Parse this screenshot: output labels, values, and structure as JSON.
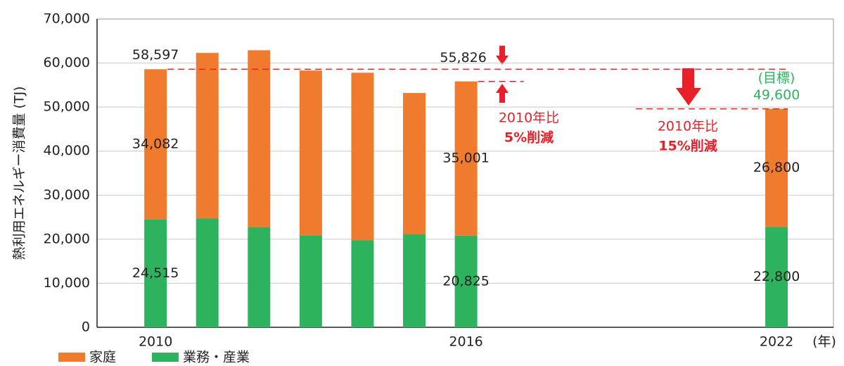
{
  "chart_data": {
    "type": "stacked_bar",
    "y_label": "熱利用エネルギー消費量 (TJ)",
    "x_unit_label": "(年)",
    "x": [
      2010,
      2011,
      2012,
      2013,
      2014,
      2015,
      2016,
      2022
    ],
    "xlim": [
      2008.87,
      2023.1
    ],
    "xticks": [
      2010,
      2016,
      2022
    ],
    "ylim": [
      0,
      70000
    ],
    "yticks": [
      0,
      {
        "value": 10000,
        "label": "10,000"
      },
      {
        "value": 20000,
        "label": "20,000"
      },
      {
        "value": 30000,
        "label": "30,000"
      },
      {
        "value": 40000,
        "label": "40,000"
      },
      {
        "value": 50000,
        "label": "50,000"
      },
      {
        "value": 60000,
        "label": "60,000"
      },
      {
        "value": 70000,
        "label": "70,000"
      }
    ],
    "grid": true,
    "series": [
      {
        "name": "家庭",
        "color": "#f07a2e",
        "values": [
          34082,
          37600,
          40200,
          37400,
          38000,
          32100,
          35001,
          26800
        ],
        "value_labels": [
          "34,082",
          null,
          null,
          null,
          null,
          null,
          "35,001",
          "26,800"
        ]
      },
      {
        "name": "業務・産業",
        "color": "#2db35d",
        "values": [
          24515,
          24700,
          22700,
          20900,
          19800,
          21100,
          20825,
          22800
        ],
        "value_labels": [
          "24,515",
          null,
          null,
          null,
          null,
          null,
          "20,825",
          "22,800"
        ]
      }
    ],
    "totals": [
      {
        "x": 2010,
        "value": 58597,
        "label": "58,597"
      },
      {
        "x": 2016,
        "value": 55826,
        "label": "55,826"
      },
      {
        "x": 2022,
        "value": 49600,
        "label": "49,600"
      }
    ],
    "target_label": "(目標)",
    "annotations": [
      {
        "line1": "2010年比",
        "line2": "5%削減"
      },
      {
        "line1": "2010年比",
        "line2": "15%削減"
      }
    ]
  }
}
